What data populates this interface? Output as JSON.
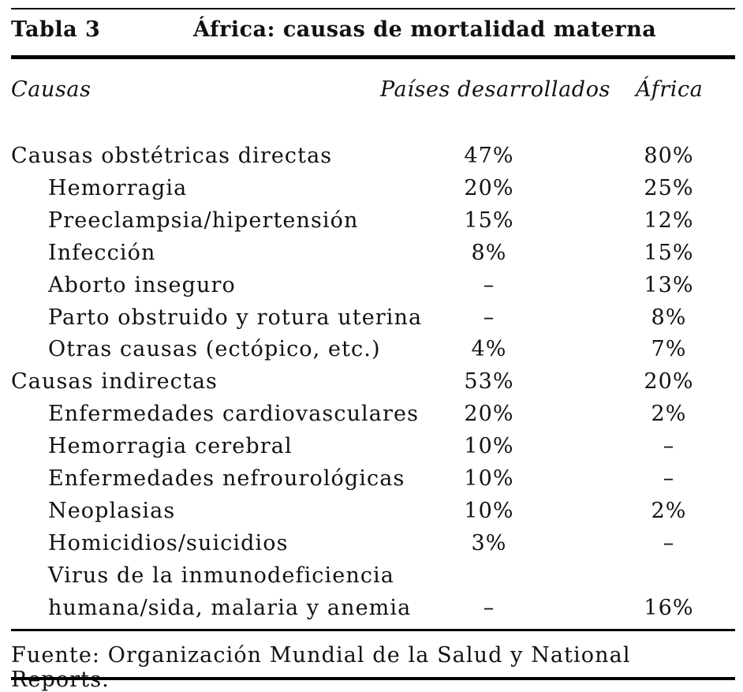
{
  "table_number": "Tabla 3",
  "title": "África: causas de mortalidad materna",
  "columns": [
    "Causas",
    "Países desarrollados",
    "África"
  ],
  "rows": [
    {
      "label": "Causas obstétricas directas",
      "level": 0,
      "desarrollados": "47%",
      "africa": "80%"
    },
    {
      "label": "Hemorragia",
      "level": 1,
      "desarrollados": "20%",
      "africa": "25%"
    },
    {
      "label": "Preeclampsia/hipertensión",
      "level": 1,
      "desarrollados": "15%",
      "africa": "12%"
    },
    {
      "label": "Infección",
      "level": 1,
      "desarrollados": "8%",
      "africa": "15%"
    },
    {
      "label": "Aborto inseguro",
      "level": 1,
      "desarrollados": "–",
      "africa": "13%"
    },
    {
      "label": "Parto obstruido y rotura uterina",
      "level": 1,
      "desarrollados": "–",
      "africa": "8%"
    },
    {
      "label": "Otras causas (ectópico, etc.)",
      "level": 1,
      "desarrollados": "4%",
      "africa": "7%"
    },
    {
      "label": "Causas indirectas",
      "level": 0,
      "desarrollados": "53%",
      "africa": "20%"
    },
    {
      "label": "Enfermedades cardiovasculares",
      "level": 1,
      "desarrollados": "20%",
      "africa": "2%"
    },
    {
      "label": "Hemorragia cerebral",
      "level": 1,
      "desarrollados": "10%",
      "africa": "–"
    },
    {
      "label": "Enfermedades nefrourológicas",
      "level": 1,
      "desarrollados": "10%",
      "africa": "–"
    },
    {
      "label": "Neoplasias",
      "level": 1,
      "desarrollados": "10%",
      "africa": "2%"
    },
    {
      "label": "Homicidios/suicidios",
      "level": 1,
      "desarrollados": "3%",
      "africa": "–"
    },
    {
      "label": "Virus de la inmunodeficiencia",
      "level": 1,
      "desarrollados": "",
      "africa": ""
    },
    {
      "label": "humana/sida, malaria y anemia",
      "level": 1,
      "desarrollados": "–",
      "africa": "16%"
    }
  ],
  "source": "Fuente: Organización Mundial de la Salud y National Reports."
}
